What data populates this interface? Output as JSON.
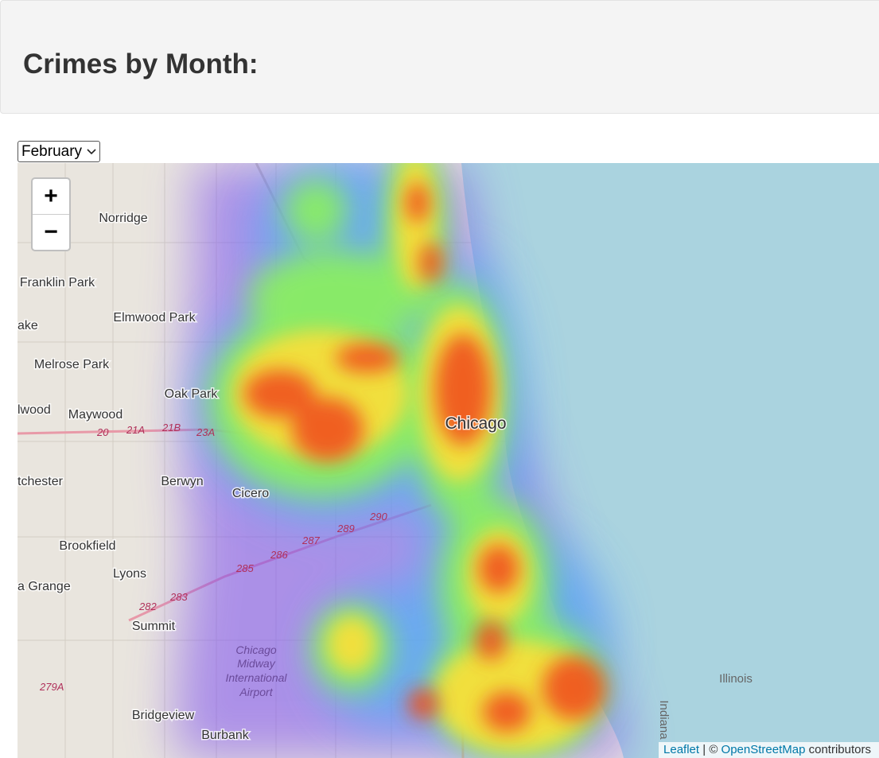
{
  "header": {
    "title": "Crimes by Month:"
  },
  "controls": {
    "month": "February",
    "zoom_in": "+",
    "zoom_out": "−"
  },
  "map": {
    "places": [
      "Norridge",
      "Franklin Park",
      "Elmwood Park",
      "Melrose Park",
      "Oak Park",
      "Maywood",
      "Berwyn",
      "Cicero",
      "Chicago",
      "Brookfield",
      "Lyons",
      "a Grange",
      "Summit",
      "Bridgeview",
      "Burbank",
      "ake",
      "lwood",
      "tchester",
      "Illinois",
      "Indiana"
    ],
    "airport": [
      "Chicago",
      "Midway",
      "International",
      "Airport"
    ],
    "highways": [
      "290",
      "289",
      "287",
      "286",
      "285",
      "283",
      "282",
      "279A",
      "20",
      "21A",
      "21B",
      "23A"
    ],
    "attribution": {
      "link": "Leaflet",
      "separator": "| ©",
      "osm": "OpenStreetMap",
      "suffix": "contributors"
    }
  }
}
